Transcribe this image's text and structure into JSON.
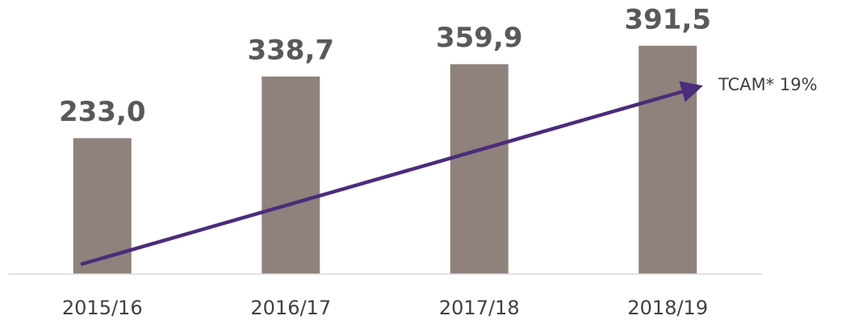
{
  "chart_data": {
    "type": "bar",
    "categories": [
      "2015/16",
      "2016/17",
      "2017/18",
      "2018/19"
    ],
    "values": [
      233.0,
      338.7,
      359.9,
      391.5
    ],
    "value_labels": [
      "233,0",
      "338,7",
      "359,9",
      "391,5"
    ],
    "color": "#8f817c",
    "ylim": [
      0,
      470
    ],
    "annotation": "TCAM* 19%"
  }
}
